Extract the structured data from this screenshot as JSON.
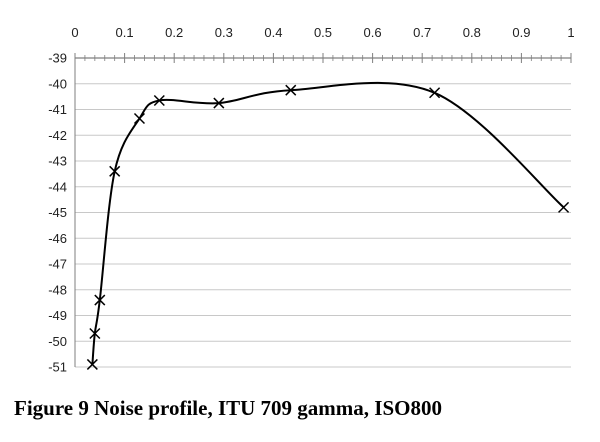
{
  "chart_data": {
    "type": "scatter",
    "title": "",
    "xlabel": "",
    "ylabel": "",
    "xlim": [
      0,
      1
    ],
    "ylim": [
      -51,
      -39
    ],
    "x_ticks": [
      "0",
      "0.1",
      "0.2",
      "0.3",
      "0.4",
      "0.5",
      "0.6",
      "0.7",
      "0.8",
      "0.9",
      "1"
    ],
    "y_ticks": [
      "-39",
      "-40",
      "-41",
      "-42",
      "-43",
      "-44",
      "-45",
      "-46",
      "-47",
      "-48",
      "-49",
      "-50",
      "-51"
    ],
    "x_axis_position": "top",
    "grid": "horizontal",
    "marker": "x",
    "line": "smooth",
    "legend": "none",
    "series": [
      {
        "points": [
          {
            "x": 0.035,
            "y": -50.9
          },
          {
            "x": 0.04,
            "y": -49.7
          },
          {
            "x": 0.05,
            "y": -48.4
          },
          {
            "x": 0.08,
            "y": -43.4
          },
          {
            "x": 0.13,
            "y": -41.35
          },
          {
            "x": 0.17,
            "y": -40.65
          },
          {
            "x": 0.29,
            "y": -40.75
          },
          {
            "x": 0.435,
            "y": -40.25
          },
          {
            "x": 0.725,
            "y": -40.35
          },
          {
            "x": 0.985,
            "y": -44.8
          }
        ]
      }
    ]
  },
  "colors": {
    "line": "#000000",
    "grid": "#c8c8c8",
    "axis": "#7f7f7f"
  },
  "caption": "Figure 9 Noise profile, ITU 709 gamma, ISO800"
}
